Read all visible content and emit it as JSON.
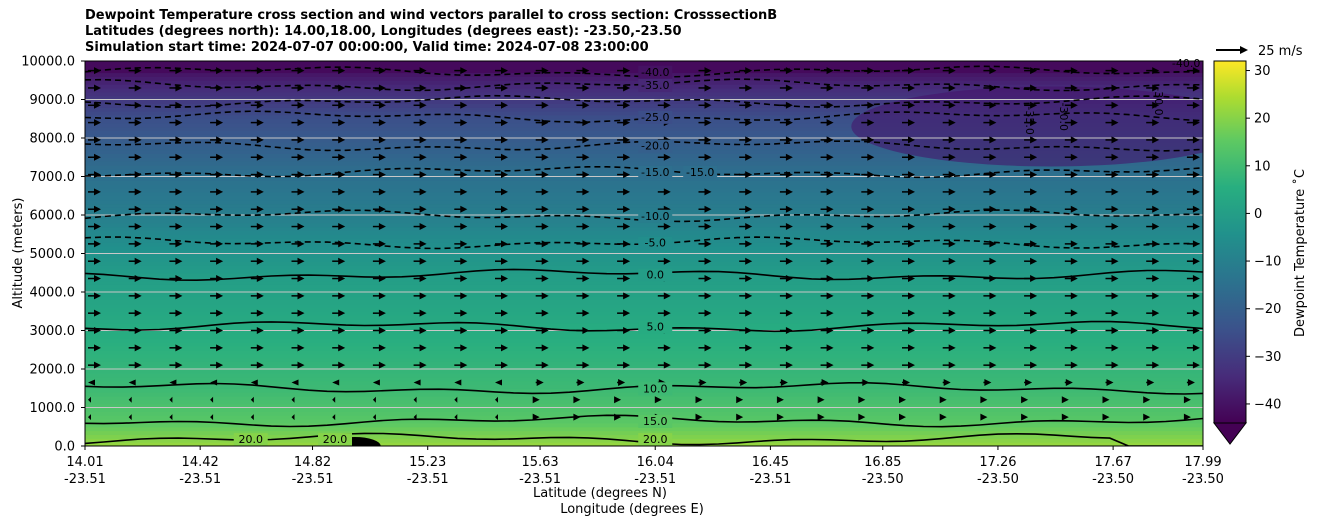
{
  "chart_data": {
    "type": "contour",
    "title_lines": [
      "Dewpoint Temperature cross section and wind vectors parallel to cross section: CrosssectionB",
      "Latitudes (degrees north): 14.00,18.00, Longitudes (degrees east): -23.50,-23.50",
      "Simulation start time: 2024-07-07 00:00:00, Valid time: 2024-07-08 23:00:00"
    ],
    "ylabel": "Altitude (meters)",
    "xlabel_lines": [
      "Latitude (degrees N)",
      "Longitude (degrees E)"
    ],
    "ylim": [
      0,
      10000
    ],
    "y_ticks": [
      "0.0",
      "1000.0",
      "2000.0",
      "3000.0",
      "4000.0",
      "5000.0",
      "6000.0",
      "7000.0",
      "8000.0",
      "9000.0",
      "10000.0"
    ],
    "x_ticks": [
      {
        "lat": "14.01",
        "lon": "-23.51"
      },
      {
        "lat": "14.42",
        "lon": "-23.51"
      },
      {
        "lat": "14.82",
        "lon": "-23.51"
      },
      {
        "lat": "15.23",
        "lon": "-23.51"
      },
      {
        "lat": "15.63",
        "lon": "-23.51"
      },
      {
        "lat": "16.04",
        "lon": "-23.51"
      },
      {
        "lat": "16.45",
        "lon": "-23.51"
      },
      {
        "lat": "16.85",
        "lon": "-23.50"
      },
      {
        "lat": "17.26",
        "lon": "-23.50"
      },
      {
        "lat": "17.67",
        "lon": "-23.50"
      },
      {
        "lat": "17.99",
        "lon": "-23.50"
      }
    ],
    "x_range_lat": [
      14.01,
      17.99
    ],
    "colorbar": {
      "label": "Dewpoint Temperature ˚C",
      "range": [
        -44,
        32
      ],
      "extend": "min",
      "ticks": [
        "−40",
        "−30",
        "−20",
        "−10",
        "0",
        "10",
        "20",
        "30"
      ]
    },
    "quiver_key": {
      "label": "25 m/s"
    },
    "contour_levels": [
      {
        "level": -40,
        "label": "-40.0",
        "style": "dashed",
        "alt": 9720,
        "labels_at": [
          16.04
        ]
      },
      {
        "level": -35,
        "label": "-35.0",
        "style": "dashed",
        "alt": 9380,
        "labels_at": [
          16.04
        ]
      },
      {
        "level": -30,
        "label": "-30.0",
        "style": "dashed",
        "alt": 8950,
        "labels_at": []
      },
      {
        "level": -25,
        "label": "-25.0",
        "style": "dashed",
        "alt": 8550,
        "labels_at": [
          16.04
        ]
      },
      {
        "level": -20,
        "label": "-20.0",
        "style": "dashed",
        "alt": 7800,
        "labels_at": [
          16.04
        ]
      },
      {
        "level": -15,
        "label": "-15.0",
        "style": "dashed",
        "alt": 7120,
        "labels_at": [
          16.04,
          16.2
        ]
      },
      {
        "level": -10,
        "label": "-10.0",
        "style": "dashed",
        "alt": 5980,
        "labels_at": [
          16.04
        ]
      },
      {
        "level": -5,
        "label": "-5.0",
        "style": "dashed",
        "alt": 5280,
        "labels_at": [
          16.04
        ]
      },
      {
        "level": 0,
        "label": "0.0",
        "style": "solid",
        "alt": 4450,
        "labels_at": [
          16.04
        ]
      },
      {
        "level": 5,
        "label": "5.0",
        "style": "solid",
        "alt": 3100,
        "labels_at": [
          16.04
        ]
      },
      {
        "level": 10,
        "label": "10.0",
        "style": "solid",
        "alt": 1500,
        "labels_at": [
          16.04
        ]
      },
      {
        "level": 15,
        "label": "15.0",
        "style": "solid",
        "alt": 650,
        "labels_at": [
          16.04
        ]
      },
      {
        "level": 20,
        "label": "20.0",
        "style": "solid",
        "alt": 180,
        "labels_at": [
          16.04,
          14.6,
          14.9
        ]
      }
    ],
    "upper_right_labels": [
      "-35.0",
      "-30.0",
      "-30.0",
      "-40.0"
    ],
    "wind_vectors": {
      "direction": "parallel, northward",
      "upper_rows_count": 21
    }
  }
}
